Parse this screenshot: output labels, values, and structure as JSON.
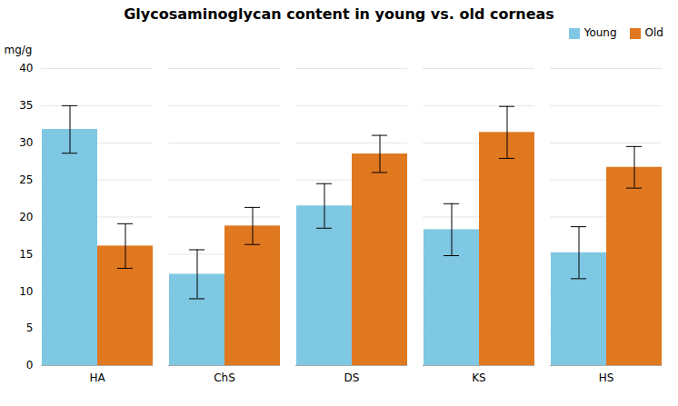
{
  "chart_data": {
    "type": "bar",
    "title": "Glycosaminoglycan content in young vs. old corneas",
    "ylabel": "mg/g",
    "categories": [
      "HA",
      "ChS",
      "DS",
      "KS",
      "HS"
    ],
    "series": [
      {
        "name": "Young",
        "color": "#7EC8E3",
        "values": [
          31.8,
          12.3,
          21.5,
          18.3,
          15.2
        ],
        "errors": [
          3.2,
          3.3,
          3.0,
          3.5,
          3.5
        ]
      },
      {
        "name": "Old",
        "color": "#E07820",
        "values": [
          16.1,
          18.8,
          28.5,
          31.4,
          26.7
        ],
        "errors": [
          3.0,
          2.5,
          2.5,
          3.5,
          2.8
        ]
      }
    ],
    "ylim": [
      0,
      40
    ],
    "yticks": [
      0,
      5,
      10,
      15,
      20,
      25,
      30,
      35,
      40
    ],
    "grid": true,
    "legend": "upper right"
  }
}
